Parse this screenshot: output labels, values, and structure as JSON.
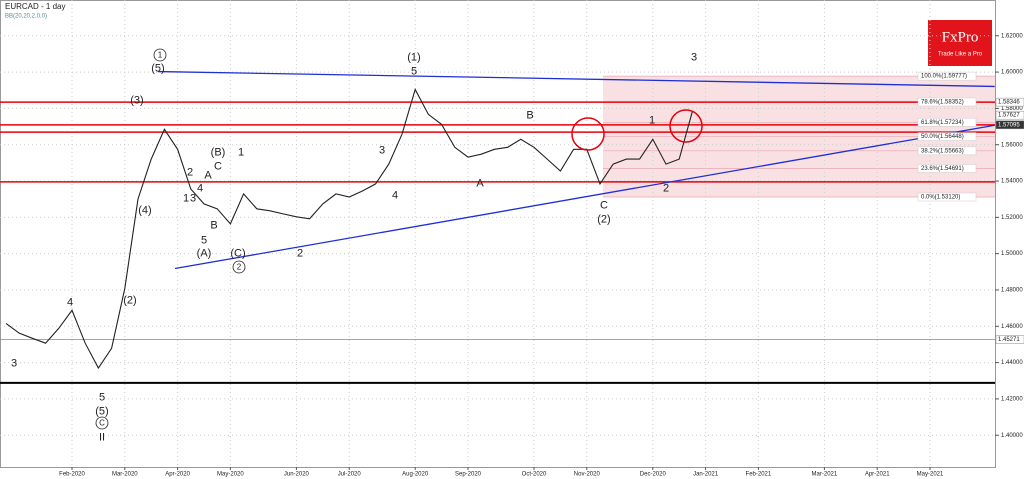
{
  "chart_data": {
    "type": "line",
    "title": "EURCAD - 1 day",
    "subtitle": "BB(20,20,2,0,0)",
    "logo": {
      "brand": "FxPro",
      "tagline": "Trade Like a Pro"
    },
    "categories": [
      null,
      null,
      null,
      null,
      null,
      "Feb-2020",
      null,
      null,
      null,
      "Mar-2020",
      null,
      null,
      null,
      "Apr-2020",
      null,
      null,
      null,
      "May-2020",
      null,
      null,
      null,
      null,
      "Jun-2020",
      null,
      null,
      null,
      "Jul-2020",
      null,
      null,
      null,
      null,
      "Aug-2020",
      null,
      null,
      null,
      "Sep-2020",
      null,
      null,
      null,
      null,
      "Oct-2020",
      null,
      null,
      null,
      "Nov-2020",
      null,
      null,
      null,
      null,
      "Dec-2020",
      null,
      null,
      null,
      "Jan-2021",
      null,
      null,
      null,
      "Feb-2021",
      null,
      null,
      null,
      null,
      "Mar-2021",
      null,
      null,
      null,
      "Apr-2021",
      null,
      null,
      null,
      "May-2021",
      null
    ],
    "series": [
      {
        "name": "EURCAD",
        "color": "#222222",
        "values": [
          1.4616,
          1.4562,
          1.4534,
          1.4507,
          1.4589,
          1.4688,
          1.4507,
          1.437,
          1.4479,
          1.4808,
          1.5301,
          1.5521,
          1.5685,
          1.5575,
          1.5356,
          1.5274,
          1.5247,
          1.5164,
          1.5329,
          1.5247,
          1.5236,
          1.5219,
          1.5203,
          1.5192,
          1.5274,
          1.5329,
          1.5312,
          1.5345,
          1.5384,
          1.5493,
          1.5658,
          1.5904,
          1.5767,
          1.5712,
          1.5586,
          1.5532,
          1.5548,
          1.5575,
          1.5586,
          1.563,
          1.5586,
          1.5521,
          1.5455,
          1.5575,
          1.5575,
          1.5384,
          1.5493,
          1.5521,
          1.5521,
          1.563,
          1.5493,
          1.5521,
          1.5784,
          null,
          null,
          null,
          null,
          null,
          null,
          null,
          null,
          null,
          null,
          null,
          null,
          null,
          null,
          null,
          null,
          null,
          null,
          null
        ]
      }
    ],
    "ylim": [
      1.3825,
      1.6397
    ],
    "yticks": [
      {
        "value": 1.4,
        "label": "1.40000"
      },
      {
        "value": 1.42,
        "label": "1.42000"
      },
      {
        "value": 1.44,
        "label": "1.44000"
      },
      {
        "value": 1.46,
        "label": "1.46000"
      },
      {
        "value": 1.48,
        "label": "1.48000"
      },
      {
        "value": 1.5,
        "label": "1.50000"
      },
      {
        "value": 1.52,
        "label": "1.52000"
      },
      {
        "value": 1.54,
        "label": "1.54000"
      },
      {
        "value": 1.56,
        "label": "1.56000"
      },
      {
        "value": 1.58,
        "label": "1.58000"
      },
      {
        "value": 1.6,
        "label": "1.60000"
      },
      {
        "value": 1.62,
        "label": "1.62000"
      }
    ],
    "grid": true,
    "hlines": [
      {
        "value": 1.58346,
        "color": "#e8000b",
        "width": 1.5
      },
      {
        "value": 1.57095,
        "color": "#e8000b",
        "width": 1.5
      },
      {
        "value": 1.5669,
        "color": "#e8000b",
        "width": 1.5
      },
      {
        "value": 1.5395,
        "color": "#e8000b",
        "width": 1.5
      },
      {
        "value": 1.45271,
        "color": "#888888",
        "width": 0.8
      },
      {
        "value": 1.4288,
        "color": "#000000",
        "width": 2
      }
    ],
    "price_tags": [
      {
        "value": 1.58346
      },
      {
        "value": 1.57627
      },
      {
        "value": 1.57095,
        "highlight": true
      },
      {
        "value": 1.45271
      }
    ],
    "fib_levels": [
      {
        "label": "100.0%(1.59777)",
        "value": 1.59777
      },
      {
        "label": "78.6%(1.58352)",
        "value": 1.58352
      },
      {
        "label": "61.8%(1.57234)",
        "value": 1.57234
      },
      {
        "label": "50.0%(1.56448)",
        "value": 1.56448
      },
      {
        "label": "38.2%(1.55663)",
        "value": 1.55663
      },
      {
        "label": "23.6%(1.54691)",
        "value": 1.54691
      },
      {
        "label": "0.0%(1.53120)",
        "value": 1.5312
      }
    ],
    "trendlines": [
      {
        "color": "#1f2fd6",
        "start": [
          11.5,
          1.6003
        ],
        "end": [
          74.9,
          1.5921
        ]
      },
      {
        "color": "#1f2fd6",
        "start": [
          12.8,
          1.4918
        ],
        "end": [
          74.9,
          1.5707
        ]
      }
    ],
    "wave_labels": [
      {
        "text": "1",
        "circled": true
      },
      {
        "text": "(5)"
      },
      {
        "text": "(3)"
      },
      {
        "text": "(B)"
      },
      {
        "text": "C"
      },
      {
        "text": "1"
      },
      {
        "text": "A"
      },
      {
        "text": "2"
      },
      {
        "text": "4"
      },
      {
        "text": "1"
      },
      {
        "text": "3"
      },
      {
        "text": "B"
      },
      {
        "text": "5"
      },
      {
        "text": "(A)"
      },
      {
        "text": "(C)"
      },
      {
        "text": "2",
        "circled": true
      },
      {
        "text": "(4)"
      },
      {
        "text": "(2)"
      },
      {
        "text": "4"
      },
      {
        "text": "3"
      },
      {
        "text": "5"
      },
      {
        "text": "(5)"
      },
      {
        "text": "C",
        "circled": true
      },
      {
        "text": "II"
      },
      {
        "text": "2"
      },
      {
        "text": "3"
      },
      {
        "text": "4"
      },
      {
        "text": "(1)"
      },
      {
        "text": "5"
      },
      {
        "text": "A"
      },
      {
        "text": "B"
      },
      {
        "text": "C"
      },
      {
        "text": "(2)"
      },
      {
        "text": "1"
      },
      {
        "text": "2"
      },
      {
        "text": "3"
      }
    ]
  }
}
